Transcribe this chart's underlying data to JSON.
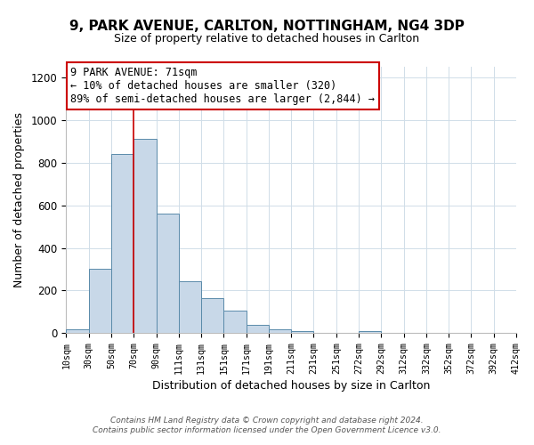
{
  "title1": "9, PARK AVENUE, CARLTON, NOTTINGHAM, NG4 3DP",
  "title2": "Size of property relative to detached houses in Carlton",
  "xlabel": "Distribution of detached houses by size in Carlton",
  "ylabel": "Number of detached properties",
  "bin_labels": [
    "10sqm",
    "30sqm",
    "50sqm",
    "70sqm",
    "90sqm",
    "111sqm",
    "131sqm",
    "151sqm",
    "171sqm",
    "191sqm",
    "211sqm",
    "231sqm",
    "251sqm",
    "272sqm",
    "292sqm",
    "312sqm",
    "332sqm",
    "352sqm",
    "372sqm",
    "392sqm",
    "412sqm"
  ],
  "bar_values": [
    20,
    300,
    840,
    910,
    560,
    245,
    165,
    105,
    38,
    18,
    10,
    0,
    0,
    10,
    0,
    0,
    0,
    0,
    0,
    0
  ],
  "bar_color": "#c8d8e8",
  "bar_edge_color": "#5a8aaa",
  "annotation_title": "9 PARK AVENUE: 71sqm",
  "annotation_line1": "← 10% of detached houses are smaller (320)",
  "annotation_line2": "89% of semi-detached houses are larger (2,844) →",
  "annotation_box_color": "#ffffff",
  "annotation_box_edge": "#cc0000",
  "vertical_line_color": "#cc0000",
  "ylim": [
    0,
    1250
  ],
  "yticks": [
    0,
    200,
    400,
    600,
    800,
    1000,
    1200
  ],
  "footer1": "Contains HM Land Registry data © Crown copyright and database right 2024.",
  "footer2": "Contains public sector information licensed under the Open Government Licence v3.0.",
  "grid_color": "#d0dde8",
  "title1_fontsize": 11,
  "title2_fontsize": 9,
  "xlabel_fontsize": 9,
  "ylabel_fontsize": 9,
  "footer_fontsize": 6.5,
  "ann_fontsize": 8.5,
  "vertical_line_bin": 3
}
